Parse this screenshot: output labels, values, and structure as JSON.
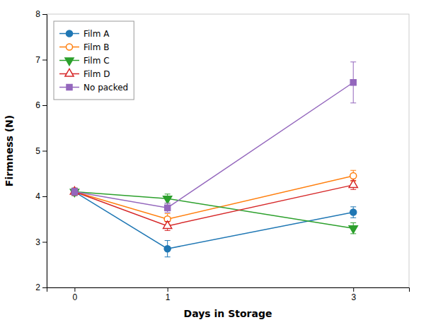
{
  "chart_data": {
    "type": "line",
    "x_label": "Days in Storage",
    "y_label": "Firmness (N)",
    "x": [
      0,
      1,
      3
    ],
    "series": [
      {
        "name": "Film A",
        "values": [
          4.1,
          2.85,
          3.65
        ],
        "errors": [
          0.08,
          0.18,
          0.12
        ],
        "marker": "circle",
        "line_style": "solid"
      },
      {
        "name": "Film B",
        "values": [
          4.1,
          3.5,
          4.45
        ],
        "errors": [
          0.08,
          0.12,
          0.12
        ],
        "marker": "circle-open",
        "line_style": "solid"
      },
      {
        "name": "Film C",
        "values": [
          4.1,
          3.95,
          3.3
        ],
        "errors": [
          0.08,
          0.1,
          0.12
        ],
        "marker": "triangle-down",
        "line_style": "solid"
      },
      {
        "name": "Film D",
        "values": [
          4.1,
          3.35,
          4.25
        ],
        "errors": [
          0.08,
          0.1,
          0.1
        ],
        "marker": "triangle-up-open",
        "line_style": "solid"
      },
      {
        "name": "No packed",
        "values": [
          4.1,
          3.75,
          6.5
        ],
        "errors": [
          0.08,
          0.1,
          0.45
        ],
        "marker": "square",
        "line_style": "solid"
      }
    ],
    "xlim": [
      -0.3,
      3.6
    ],
    "ylim": [
      2,
      8
    ],
    "xticks": [
      0,
      1,
      3
    ],
    "yticks": [
      2,
      3,
      4,
      5,
      6,
      7,
      8
    ],
    "grid": false,
    "legend": "upper-left"
  }
}
